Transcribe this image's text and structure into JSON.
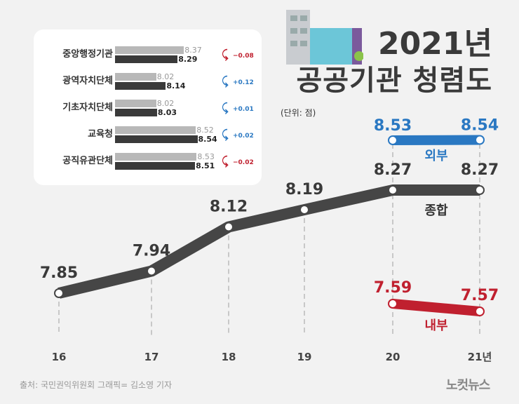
{
  "title_line1": "2021년",
  "title_line2": "공공기관 청렴도",
  "unit": "(단위: 점)",
  "source": "출처: 국민권익위원회   그래픽= 김소영 기자",
  "logo": "노컷뉴스",
  "colors": {
    "total": "#464646",
    "external": "#2a78c2",
    "internal": "#c0202f",
    "bar_2020": "#b8b8b8",
    "bar_2021": "#3a3a3a",
    "background": "#f2f2f2"
  },
  "chart_data": [
    {
      "type": "line",
      "x": [
        "16",
        "17",
        "18",
        "19",
        "20",
        "21년"
      ],
      "series": [
        {
          "name": "종합",
          "values": [
            7.85,
            7.94,
            8.12,
            8.19,
            8.27,
            8.27
          ],
          "labels": [
            "7.85",
            "7.94",
            "8.12",
            "8.19",
            "8.27",
            "8.27"
          ]
        },
        {
          "name": "외부",
          "x": [
            "20",
            "21년"
          ],
          "values": [
            8.53,
            8.54
          ],
          "labels": [
            "8.53",
            "8.54"
          ]
        },
        {
          "name": "내부",
          "x": [
            "20",
            "21년"
          ],
          "values": [
            7.59,
            7.57
          ],
          "labels": [
            "7.59",
            "7.57"
          ]
        }
      ]
    },
    {
      "type": "bar",
      "categories": [
        "중앙행정기관",
        "광역자치단체",
        "기초자치단체",
        "교육청",
        "공직유관단체"
      ],
      "series": [
        {
          "values": [
            8.37,
            8.02,
            8.02,
            8.52,
            8.53
          ],
          "labels": [
            "8.37",
            "8.02",
            "8.02",
            "8.52",
            "8.53"
          ]
        },
        {
          "values": [
            8.29,
            8.14,
            8.03,
            8.54,
            8.51
          ],
          "labels": [
            "8.29",
            "8.14",
            "8.03",
            "8.54",
            "8.51"
          ]
        }
      ],
      "changes": [
        "−0.08",
        "+0.12",
        "+0.01",
        "+0.02",
        "−0.02"
      ],
      "change_direction": [
        "down",
        "up",
        "up",
        "up",
        "down"
      ]
    }
  ]
}
